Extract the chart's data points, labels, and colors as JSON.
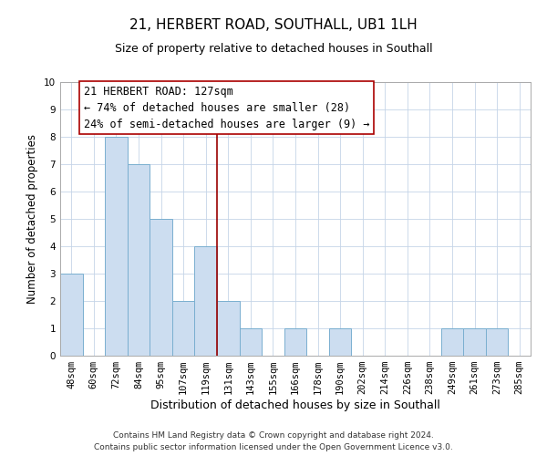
{
  "title": "21, HERBERT ROAD, SOUTHALL, UB1 1LH",
  "subtitle": "Size of property relative to detached houses in Southall",
  "xlabel": "Distribution of detached houses by size in Southall",
  "ylabel": "Number of detached properties",
  "bin_labels": [
    "48sqm",
    "60sqm",
    "72sqm",
    "84sqm",
    "95sqm",
    "107sqm",
    "119sqm",
    "131sqm",
    "143sqm",
    "155sqm",
    "166sqm",
    "178sqm",
    "190sqm",
    "202sqm",
    "214sqm",
    "226sqm",
    "238sqm",
    "249sqm",
    "261sqm",
    "273sqm",
    "285sqm"
  ],
  "counts": [
    3,
    0,
    8,
    7,
    5,
    2,
    4,
    2,
    1,
    0,
    1,
    0,
    1,
    0,
    0,
    0,
    0,
    1,
    1,
    1,
    0
  ],
  "bar_color": "#ccddf0",
  "bar_edge_color": "#7aafd0",
  "property_line_bin": 7,
  "property_line_color": "#990000",
  "ylim": [
    0,
    10
  ],
  "annotation_title": "21 HERBERT ROAD: 127sqm",
  "annotation_line1": "← 74% of detached houses are smaller (28)",
  "annotation_line2": "24% of semi-detached houses are larger (9) →",
  "annotation_box_color": "#ffffff",
  "annotation_box_edge": "#aa0000",
  "footer_line1": "Contains HM Land Registry data © Crown copyright and database right 2024.",
  "footer_line2": "Contains public sector information licensed under the Open Government Licence v3.0.",
  "title_fontsize": 11,
  "subtitle_fontsize": 9,
  "xlabel_fontsize": 9,
  "ylabel_fontsize": 8.5,
  "tick_fontsize": 7.5,
  "annotation_fontsize": 8.5,
  "footer_fontsize": 6.5,
  "background_color": "#ffffff",
  "grid_color": "#c5d5e8"
}
